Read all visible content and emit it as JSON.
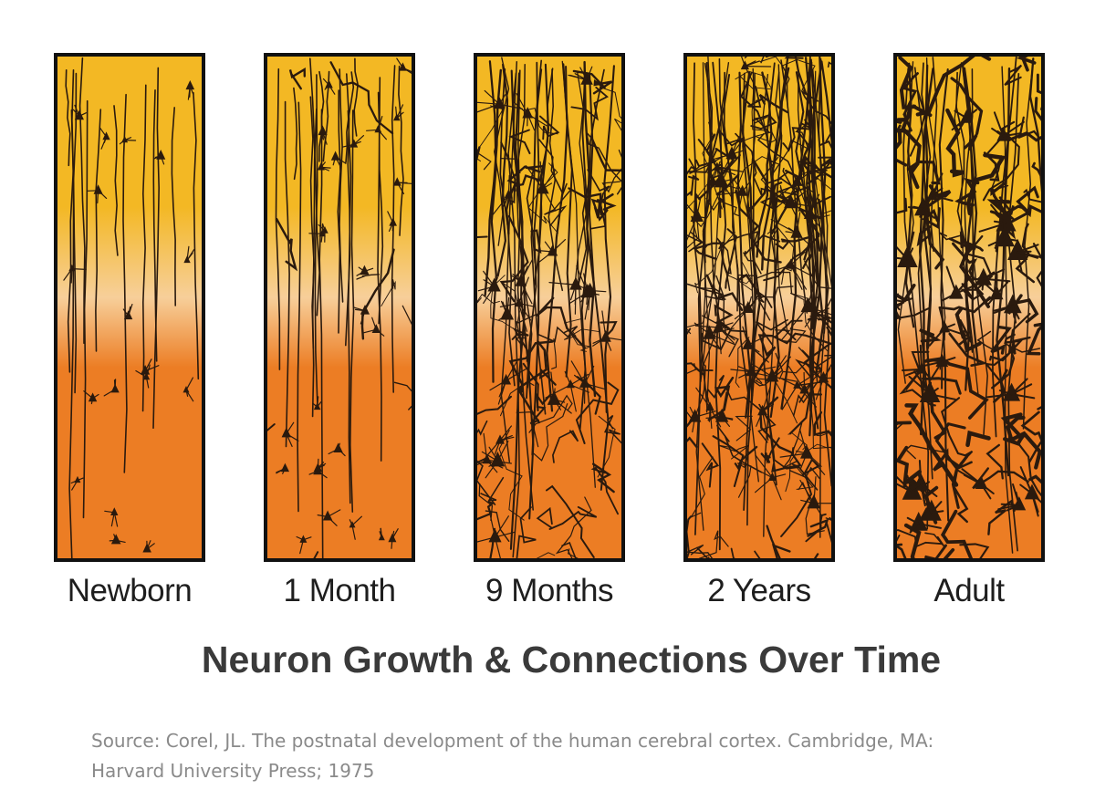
{
  "panels": [
    {
      "label": "Newborn",
      "density": 0
    },
    {
      "label": "1 Month",
      "density": 1
    },
    {
      "label": "9 Months",
      "density": 2
    },
    {
      "label": "2 Years",
      "density": 3
    },
    {
      "label": "Adult",
      "density": 4
    }
  ],
  "title": "Neuron Growth & Connections Over Time",
  "source": {
    "line1": "Source: Corel, JL. The postnatal development of the human cerebral cortex. Cambridge, MA:",
    "line2": "Harvard University Press; 1975"
  },
  "colors": {
    "top": "#f3b824",
    "middle": "#f7cf9a",
    "bottom": "#ec7d24",
    "neuron": "#2a1a0e",
    "border": "#111111",
    "title": "#3a3a3a",
    "source": "#8a8a8a"
  }
}
